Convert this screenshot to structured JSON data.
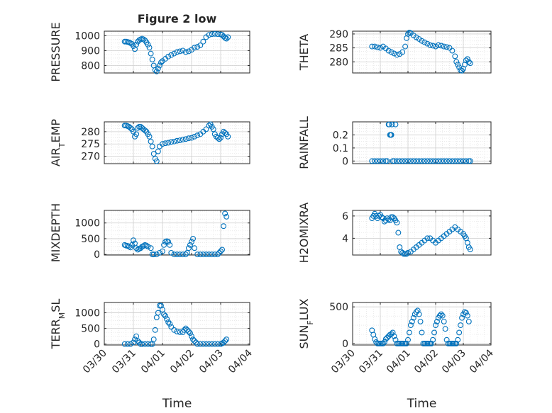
{
  "chart_data": [
    {
      "type": "scatter",
      "title": "Figure 2 low",
      "ylabel": "PRESSURE",
      "xlabel": "",
      "xlim": [
        0,
        5
      ],
      "ylim": [
        750,
        1030
      ],
      "xticks": [
        0,
        1,
        2,
        3,
        4,
        5
      ],
      "yticks": [
        800,
        900,
        1000
      ],
      "x": [
        0.7,
        0.75,
        0.8,
        0.85,
        0.9,
        0.95,
        1.0,
        1.05,
        1.1,
        1.15,
        1.2,
        1.25,
        1.3,
        1.35,
        1.4,
        1.45,
        1.5,
        1.55,
        1.6,
        1.65,
        1.7,
        1.75,
        1.8,
        1.85,
        1.9,
        1.95,
        2.0,
        2.1,
        2.2,
        2.3,
        2.4,
        2.5,
        2.6,
        2.7,
        2.8,
        2.9,
        3.0,
        3.1,
        3.2,
        3.3,
        3.4,
        3.5,
        3.6,
        3.7,
        3.8,
        3.9,
        4.0,
        4.05,
        4.1,
        4.15,
        4.2,
        4.25
      ],
      "y": [
        960,
        960,
        958,
        955,
        950,
        945,
        930,
        910,
        940,
        960,
        970,
        975,
        980,
        975,
        968,
        955,
        940,
        920,
        880,
        840,
        800,
        770,
        760,
        780,
        800,
        820,
        830,
        845,
        860,
        870,
        880,
        890,
        895,
        900,
        890,
        895,
        905,
        920,
        925,
        935,
        960,
        990,
        1005,
        1010,
        1012,
        1010,
        1008,
        1005,
        995,
        985,
        980,
        990
      ]
    },
    {
      "type": "scatter",
      "title": "",
      "ylabel": "THETA",
      "xlabel": "",
      "xlim": [
        0,
        5
      ],
      "ylim": [
        276,
        291
      ],
      "xticks": [
        0,
        1,
        2,
        3,
        4,
        5
      ],
      "yticks": [
        280,
        285,
        290
      ],
      "x": [
        0.7,
        0.8,
        0.9,
        1.0,
        1.1,
        1.2,
        1.3,
        1.4,
        1.5,
        1.6,
        1.7,
        1.8,
        1.9,
        1.95,
        2.0,
        2.05,
        2.1,
        2.2,
        2.3,
        2.4,
        2.5,
        2.6,
        2.7,
        2.8,
        2.9,
        3.0,
        3.1,
        3.2,
        3.3,
        3.4,
        3.5,
        3.6,
        3.7,
        3.75,
        3.8,
        3.85,
        3.9,
        3.95,
        4.0,
        4.05,
        4.1,
        4.15,
        4.2,
        4.25
      ],
      "y": [
        285.5,
        285.5,
        285.2,
        285,
        285.5,
        284.8,
        284,
        283.5,
        283,
        282.5,
        282.8,
        283.5,
        285.5,
        288.5,
        290,
        290.5,
        290.3,
        289.5,
        288.8,
        288.2,
        287.5,
        287,
        286.5,
        286,
        285.8,
        285.5,
        286,
        285.8,
        285.5,
        285.3,
        285,
        284,
        282,
        280,
        279,
        278,
        277,
        276.8,
        277.5,
        279,
        280.5,
        281,
        280,
        279.5
      ]
    },
    {
      "type": "scatter",
      "title": "",
      "ylabel": "AIR_TEMP",
      "xlabel": "",
      "xlim": [
        0,
        5
      ],
      "ylim": [
        267,
        284
      ],
      "xticks": [
        0,
        1,
        2,
        3,
        4,
        5
      ],
      "yticks": [
        270,
        275,
        280
      ],
      "x": [
        0.7,
        0.75,
        0.8,
        0.85,
        0.9,
        0.95,
        1.0,
        1.05,
        1.1,
        1.15,
        1.2,
        1.25,
        1.3,
        1.35,
        1.4,
        1.45,
        1.5,
        1.55,
        1.6,
        1.65,
        1.7,
        1.75,
        1.8,
        1.85,
        1.9,
        2.0,
        2.1,
        2.2,
        2.3,
        2.4,
        2.5,
        2.6,
        2.7,
        2.8,
        2.9,
        3.0,
        3.1,
        3.2,
        3.3,
        3.4,
        3.5,
        3.6,
        3.65,
        3.7,
        3.75,
        3.8,
        3.85,
        3.9,
        3.95,
        4.0,
        4.05,
        4.1,
        4.15,
        4.2,
        4.25
      ],
      "y": [
        282.5,
        282.5,
        282.3,
        282,
        281.5,
        281,
        280,
        278,
        279,
        281.5,
        282,
        282,
        281.5,
        281,
        280.5,
        280,
        279,
        278,
        276,
        274,
        271,
        269,
        268,
        272,
        274,
        275,
        275.3,
        275.5,
        275.8,
        276,
        276.3,
        276.5,
        276.8,
        277,
        277.3,
        277.5,
        278,
        278.5,
        279,
        280,
        281,
        282.5,
        283,
        282,
        281,
        279,
        278,
        277.5,
        277,
        277.5,
        279,
        280,
        279.5,
        279,
        278
      ]
    },
    {
      "type": "scatter",
      "title": "",
      "ylabel": "RAINFALL",
      "xlabel": "",
      "xlim": [
        0,
        5
      ],
      "ylim": [
        -0.02,
        0.3
      ],
      "xticks": [
        0,
        1,
        2,
        3,
        4,
        5
      ],
      "yticks": [
        0,
        0.1,
        0.2
      ],
      "x": [
        0.7,
        0.8,
        0.9,
        1.0,
        1.1,
        1.2,
        1.25,
        1.3,
        1.32,
        1.35,
        1.38,
        1.4,
        1.42,
        1.45,
        1.5,
        1.55,
        1.6,
        1.7,
        1.8,
        1.9,
        2.0,
        2.1,
        2.2,
        2.3,
        2.4,
        2.5,
        2.6,
        2.7,
        2.8,
        2.9,
        3.0,
        3.1,
        3.2,
        3.3,
        3.4,
        3.5,
        3.6,
        3.7,
        3.8,
        3.9,
        4.0,
        4.1,
        4.2,
        4.25
      ],
      "y": [
        0,
        0,
        0,
        0,
        0,
        0,
        0,
        0.28,
        0.28,
        0.2,
        0.2,
        0.2,
        0.28,
        0,
        0,
        0.28,
        0,
        0,
        0,
        0,
        0,
        0,
        0,
        0,
        0,
        0,
        0,
        0,
        0,
        0,
        0,
        0,
        0,
        0,
        0,
        0,
        0,
        0,
        0,
        0,
        0,
        0,
        0,
        0
      ]
    },
    {
      "type": "scatter",
      "title": "",
      "ylabel": "MIXDEPTH",
      "xlabel": "",
      "xlim": [
        0,
        5
      ],
      "ylim": [
        -20,
        1400
      ],
      "xticks": [
        0,
        1,
        2,
        3,
        4,
        5
      ],
      "yticks": [
        0,
        500,
        1000
      ],
      "x": [
        0.7,
        0.75,
        0.8,
        0.85,
        0.9,
        0.95,
        1.0,
        1.05,
        1.1,
        1.15,
        1.2,
        1.25,
        1.3,
        1.35,
        1.4,
        1.45,
        1.5,
        1.6,
        1.65,
        1.7,
        1.8,
        1.9,
        2.0,
        2.05,
        2.1,
        2.15,
        2.2,
        2.25,
        2.3,
        2.4,
        2.5,
        2.6,
        2.7,
        2.8,
        2.85,
        2.9,
        2.95,
        3.0,
        3.05,
        3.1,
        3.2,
        3.3,
        3.4,
        3.5,
        3.6,
        3.7,
        3.8,
        3.9,
        3.95,
        4.0,
        4.05,
        4.1,
        4.15,
        4.2
      ],
      "y": [
        300,
        280,
        270,
        250,
        220,
        300,
        450,
        350,
        200,
        150,
        180,
        200,
        250,
        270,
        300,
        280,
        250,
        200,
        0,
        0,
        0,
        50,
        100,
        300,
        400,
        420,
        400,
        300,
        50,
        0,
        0,
        0,
        0,
        0,
        50,
        200,
        300,
        400,
        500,
        200,
        0,
        0,
        0,
        0,
        0,
        0,
        0,
        0,
        50,
        100,
        150,
        900,
        1300,
        1200
      ]
    },
    {
      "type": "scatter",
      "title": "",
      "ylabel": "H2OMIXRA",
      "xlabel": "",
      "xlim": [
        0,
        5
      ],
      "ylim": [
        2.5,
        6.5
      ],
      "xticks": [
        0,
        1,
        2,
        3,
        4,
        5
      ],
      "yticks": [
        4,
        6
      ],
      "x": [
        0.7,
        0.75,
        0.8,
        0.85,
        0.9,
        0.95,
        1.0,
        1.05,
        1.1,
        1.15,
        1.2,
        1.25,
        1.3,
        1.35,
        1.4,
        1.45,
        1.5,
        1.55,
        1.6,
        1.65,
        1.7,
        1.75,
        1.8,
        1.85,
        1.9,
        1.95,
        2.0,
        2.1,
        2.2,
        2.3,
        2.4,
        2.5,
        2.6,
        2.7,
        2.8,
        2.9,
        3.0,
        3.1,
        3.2,
        3.3,
        3.4,
        3.5,
        3.6,
        3.7,
        3.8,
        3.9,
        4.0,
        4.05,
        4.1,
        4.15,
        4.2,
        4.25
      ],
      "y": [
        5.8,
        6.0,
        6.2,
        6.0,
        5.8,
        6.0,
        6.1,
        5.9,
        5.8,
        5.5,
        5.6,
        5.8,
        5.7,
        5.6,
        5.9,
        5.9,
        5.8,
        5.6,
        5.4,
        4.5,
        3.2,
        2.8,
        2.7,
        2.6,
        2.6,
        2.6,
        2.7,
        2.8,
        3.0,
        3.2,
        3.4,
        3.6,
        3.8,
        4.0,
        4.0,
        3.8,
        3.6,
        3.8,
        4.0,
        4.2,
        4.4,
        4.6,
        4.8,
        5.0,
        4.8,
        4.6,
        4.4,
        4.2,
        4.0,
        3.6,
        3.2,
        3.0
      ]
    },
    {
      "type": "scatter",
      "title": "",
      "ylabel": "TERR_MSL",
      "xlabel": "Time",
      "xlim": [
        0,
        5
      ],
      "ylim": [
        -30,
        1330
      ],
      "xticks": [
        0,
        1,
        2,
        3,
        4,
        5
      ],
      "xticklabels": [
        "03/30",
        "03/31",
        "04/01",
        "04/02",
        "04/03",
        "04/04"
      ],
      "yticks": [
        0,
        500,
        1000
      ],
      "x": [
        0.7,
        0.8,
        0.9,
        1.0,
        1.05,
        1.1,
        1.15,
        1.2,
        1.25,
        1.3,
        1.4,
        1.5,
        1.6,
        1.65,
        1.7,
        1.75,
        1.8,
        1.85,
        1.9,
        1.95,
        2.0,
        2.05,
        2.1,
        2.15,
        2.2,
        2.25,
        2.3,
        2.4,
        2.5,
        2.6,
        2.7,
        2.75,
        2.8,
        2.85,
        2.9,
        2.95,
        3.0,
        3.05,
        3.1,
        3.15,
        3.2,
        3.3,
        3.4,
        3.5,
        3.6,
        3.7,
        3.8,
        3.9,
        4.0,
        4.05,
        4.1,
        4.15,
        4.2
      ],
      "y": [
        0,
        0,
        0,
        50,
        150,
        250,
        100,
        50,
        0,
        0,
        0,
        0,
        0,
        0,
        150,
        450,
        850,
        1000,
        1230,
        1230,
        1100,
        950,
        900,
        800,
        700,
        650,
        550,
        450,
        400,
        380,
        380,
        450,
        500,
        450,
        400,
        350,
        250,
        150,
        100,
        50,
        0,
        0,
        0,
        0,
        0,
        0,
        0,
        0,
        0,
        20,
        50,
        100,
        150
      ]
    },
    {
      "type": "scatter",
      "title": "",
      "ylabel": "SUN_FLUX",
      "xlabel": "Time",
      "xlim": [
        0,
        5
      ],
      "ylim": [
        -20,
        560
      ],
      "xticks": [
        0,
        1,
        2,
        3,
        4,
        5
      ],
      "xticklabels": [
        "03/30",
        "03/31",
        "04/01",
        "04/02",
        "04/03",
        "04/04"
      ],
      "yticks": [
        0,
        500
      ],
      "x": [
        0.7,
        0.75,
        0.8,
        0.85,
        0.9,
        0.95,
        1.0,
        1.05,
        1.1,
        1.15,
        1.2,
        1.25,
        1.3,
        1.35,
        1.4,
        1.45,
        1.5,
        1.55,
        1.6,
        1.65,
        1.7,
        1.75,
        1.8,
        1.85,
        1.9,
        1.95,
        2.0,
        2.05,
        2.1,
        2.15,
        2.2,
        2.25,
        2.3,
        2.35,
        2.4,
        2.45,
        2.5,
        2.55,
        2.6,
        2.65,
        2.7,
        2.75,
        2.8,
        2.85,
        2.9,
        2.95,
        3.0,
        3.05,
        3.1,
        3.15,
        3.2,
        3.25,
        3.3,
        3.35,
        3.4,
        3.45,
        3.5,
        3.55,
        3.6,
        3.65,
        3.7,
        3.75,
        3.8,
        3.85,
        3.9,
        3.95,
        4.0,
        4.05,
        4.1,
        4.15,
        4.2
      ],
      "y": [
        180,
        120,
        60,
        20,
        0,
        0,
        0,
        0,
        0,
        20,
        60,
        80,
        100,
        120,
        130,
        150,
        100,
        50,
        0,
        0,
        0,
        0,
        0,
        0,
        0,
        0,
        50,
        150,
        250,
        300,
        350,
        400,
        430,
        450,
        400,
        300,
        150,
        0,
        0,
        0,
        0,
        0,
        0,
        0,
        50,
        150,
        250,
        300,
        350,
        380,
        400,
        380,
        300,
        200,
        50,
        0,
        0,
        0,
        0,
        0,
        0,
        0,
        50,
        150,
        250,
        350,
        400,
        430,
        420,
        380,
        300
      ]
    }
  ]
}
